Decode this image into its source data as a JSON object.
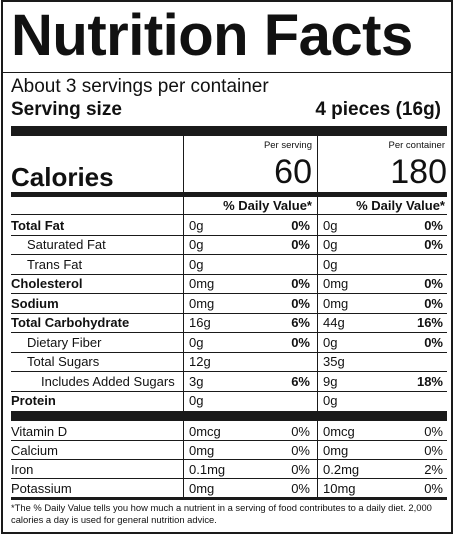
{
  "title": "Nutrition Facts",
  "servings_per_container": "About 3 servings per container",
  "serving_size_label": "Serving size",
  "serving_size_value": "4 pieces (16g)",
  "calories_label": "Calories",
  "per_serving_header": "Per serving",
  "per_container_header": "Per container",
  "calories_per_serving": "60",
  "calories_per_container": "180",
  "daily_value_header": "% Daily Value*",
  "nutrients": [
    {
      "label": "Total Fat",
      "bold": true,
      "indent": 0,
      "serving_amount": "0g",
      "serving_dv": "0%",
      "container_amount": "0g",
      "container_dv": "0%",
      "dv_bold": true
    },
    {
      "label": "Saturated Fat",
      "bold": false,
      "indent": 1,
      "serving_amount": "0g",
      "serving_dv": "0%",
      "container_amount": "0g",
      "container_dv": "0%",
      "dv_bold": true
    },
    {
      "label": "Trans Fat",
      "bold": false,
      "indent": 1,
      "serving_amount": "0g",
      "serving_dv": "",
      "container_amount": "0g",
      "container_dv": "",
      "dv_bold": false
    },
    {
      "label": "Cholesterol",
      "bold": true,
      "indent": 0,
      "serving_amount": "0mg",
      "serving_dv": "0%",
      "container_amount": "0mg",
      "container_dv": "0%",
      "dv_bold": true
    },
    {
      "label": "Sodium",
      "bold": true,
      "indent": 0,
      "serving_amount": "0mg",
      "serving_dv": "0%",
      "container_amount": "0mg",
      "container_dv": "0%",
      "dv_bold": true
    },
    {
      "label": "Total Carbohydrate",
      "bold": true,
      "indent": 0,
      "serving_amount": "16g",
      "serving_dv": "6%",
      "container_amount": "44g",
      "container_dv": "16%",
      "dv_bold": true
    },
    {
      "label": "Dietary Fiber",
      "bold": false,
      "indent": 1,
      "serving_amount": "0g",
      "serving_dv": "0%",
      "container_amount": "0g",
      "container_dv": "0%",
      "dv_bold": true
    },
    {
      "label": "Total Sugars",
      "bold": false,
      "indent": 1,
      "serving_amount": "12g",
      "serving_dv": "",
      "container_amount": "35g",
      "container_dv": "",
      "dv_bold": false
    },
    {
      "label": "Includes Added Sugars",
      "bold": false,
      "indent": 2,
      "serving_amount": "3g",
      "serving_dv": "6%",
      "container_amount": "9g",
      "container_dv": "18%",
      "dv_bold": true
    },
    {
      "label": "Protein",
      "bold": true,
      "indent": 0,
      "serving_amount": "0g",
      "serving_dv": "",
      "container_amount": "0g",
      "container_dv": "",
      "dv_bold": false
    }
  ],
  "vitamins": [
    {
      "label": "Vitamin D",
      "serving_amount": "0mcg",
      "serving_dv": "0%",
      "container_amount": "0mcg",
      "container_dv": "0%"
    },
    {
      "label": "Calcium",
      "serving_amount": "0mg",
      "serving_dv": "0%",
      "container_amount": "0mg",
      "container_dv": "0%"
    },
    {
      "label": "Iron",
      "serving_amount": "0.1mg",
      "serving_dv": "0%",
      "container_amount": "0.2mg",
      "container_dv": "2%"
    },
    {
      "label": "Potassium",
      "serving_amount": "0mg",
      "serving_dv": "0%",
      "container_amount": "10mg",
      "container_dv": "0%"
    }
  ],
  "footnote": "*The % Daily Value tells you how much a nutrient in a serving of food contributes to a daily diet. 2,000 calories a day is used for general nutrition advice."
}
